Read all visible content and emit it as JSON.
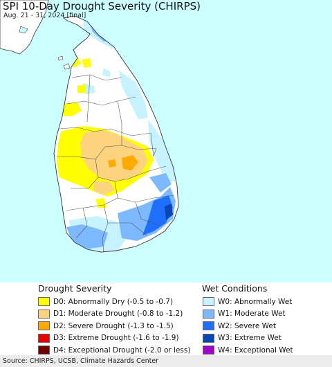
{
  "header": {
    "title": "SPI 10-Day Drought Severity (CHIRPS)",
    "subtitle": "Aug. 21 - 31, 2024 [final]"
  },
  "legend": {
    "drought_heading": "Drought Severity",
    "wet_heading": "Wet Conditions",
    "drought_items": [
      {
        "label": "D0: Abnormally Dry (-0.5 to -0.7)",
        "color": "#ffff00"
      },
      {
        "label": "D1: Moderate Drought (-0.8 to -1.2)",
        "color": "#fcd37f"
      },
      {
        "label": "D2: Severe Drought (-1.3 to -1.5)",
        "color": "#ffaa00"
      },
      {
        "label": "D3: Extreme Drought (-1.6 to -1.9)",
        "color": "#e60000"
      },
      {
        "label": "D4: Exceptional Drought (-2.0 or less)",
        "color": "#730000"
      }
    ],
    "wet_items": [
      {
        "label": "W0: Abnormally Wet",
        "color": "#c6f3ff"
      },
      {
        "label": "W1: Moderate Wet",
        "color": "#7cb9ff"
      },
      {
        "label": "W2: Severe Wet",
        "color": "#1e6eff"
      },
      {
        "label": "W3: Extreme Wet",
        "color": "#0a46b4"
      },
      {
        "label": "W4: Exceptional Wet",
        "color": "#a000c8"
      }
    ]
  },
  "footer": {
    "source": "Source: CHIRPS, UCSB, Climate Hazards Center"
  },
  "colors": {
    "ocean": "#ccffff",
    "land": "#ffffff",
    "boundary": "#555555"
  }
}
